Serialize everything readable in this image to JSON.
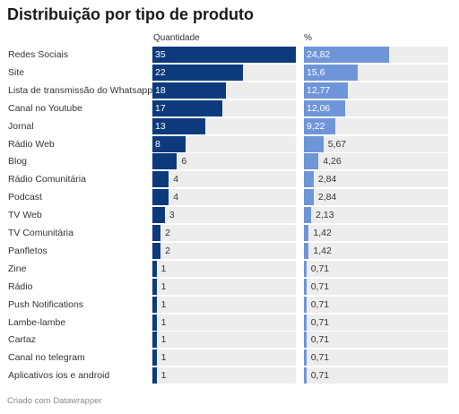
{
  "title": "Distribuição por tipo de produto",
  "footer": "Criado com Datawrapper",
  "colors": {
    "quantidade": "#0c3a7d",
    "percent": "#6f95d9",
    "track": "#ededed"
  },
  "chart_data": {
    "type": "bar",
    "orientation": "horizontal",
    "categories": [
      "Redes Sociais",
      "Site",
      "Lista de transmissão do Whatsapp",
      "Canal no Youtube",
      "Jornal",
      "Rádio Web",
      "Blog",
      "Rádio Comunitária",
      "Podcast",
      "TV Web",
      "TV Comunitária",
      "Panfletos",
      "Zine",
      "Rádio",
      "Push Notifications",
      "Lambe-lambe",
      "Cartaz",
      "Canal no telegram",
      "Aplicativos ios e android"
    ],
    "series": [
      {
        "name": "Quantidade",
        "values": [
          35,
          22,
          18,
          17,
          13,
          8,
          6,
          4,
          4,
          3,
          2,
          2,
          1,
          1,
          1,
          1,
          1,
          1,
          1
        ],
        "labels": [
          "35",
          "22",
          "18",
          "17",
          "13",
          "8",
          "6",
          "4",
          "4",
          "3",
          "2",
          "2",
          "1",
          "1",
          "1",
          "1",
          "1",
          "1",
          "1"
        ],
        "max": 35
      },
      {
        "name": "%",
        "values": [
          24.82,
          15.6,
          12.77,
          12.06,
          9.22,
          5.67,
          4.26,
          2.84,
          2.84,
          2.13,
          1.42,
          1.42,
          0.71,
          0.71,
          0.71,
          0.71,
          0.71,
          0.71,
          0.71
        ],
        "labels": [
          "24,82",
          "15,6",
          "12,77",
          "12,06",
          "9,22",
          "5,67",
          "4,26",
          "2,84",
          "2,84",
          "2,13",
          "1,42",
          "1,42",
          "0,71",
          "0,71",
          "0,71",
          "0,71",
          "0,71",
          "0,71",
          "0,71"
        ],
        "max": 42.1
      }
    ]
  }
}
